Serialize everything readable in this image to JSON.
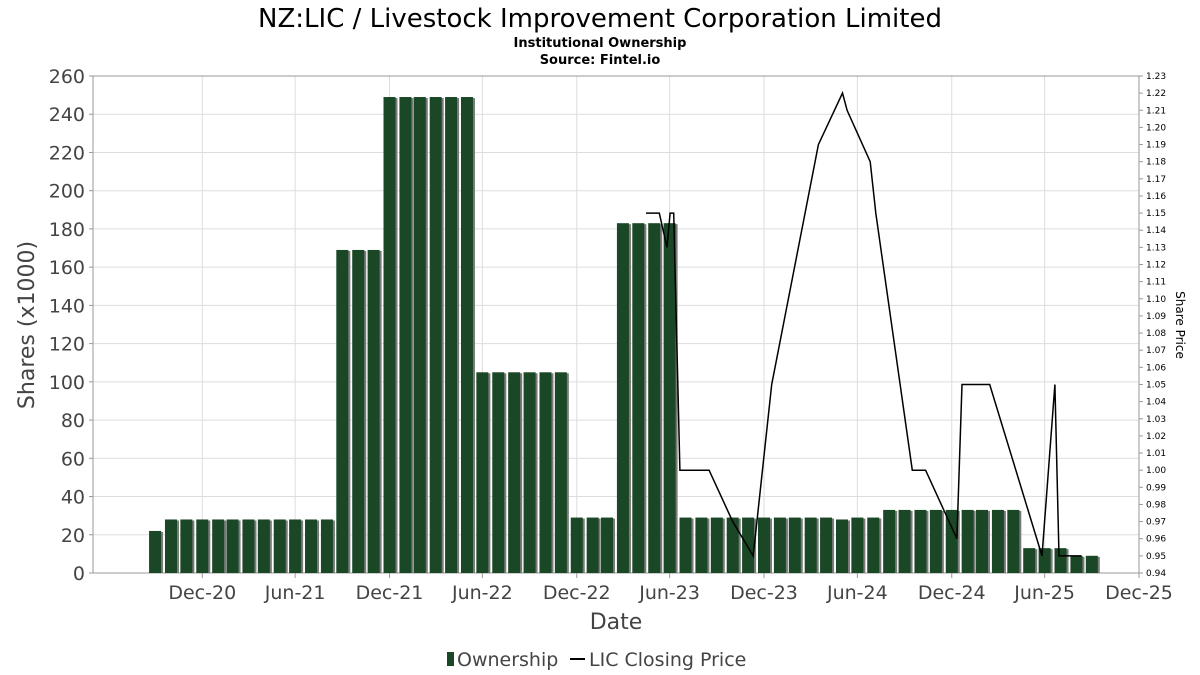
{
  "chart_data": {
    "type": "bar",
    "title": "NZ:LIC / Livestock Improvement Corporation Limited",
    "subtitle": "Institutional Ownership",
    "source": "Source: Fintel.io",
    "xlabel": "Date",
    "ylabel": "Shares (x1000)",
    "ylabel_right": "Share Price",
    "ylim": [
      0,
      260
    ],
    "ylim_right": [
      0.94,
      1.23
    ],
    "y_ticks": [
      0,
      20,
      40,
      60,
      80,
      100,
      120,
      140,
      160,
      180,
      200,
      220,
      240,
      260
    ],
    "y_right_ticks": [
      "0.94",
      "0.95",
      "0.96",
      "0.97",
      "0.98",
      "0.99",
      "1.00",
      "1.01",
      "1.02",
      "1.03",
      "1.04",
      "1.05",
      "1.06",
      "1.07",
      "1.08",
      "1.09",
      "1.10",
      "1.11",
      "1.12",
      "1.13",
      "1.14",
      "1.15",
      "1.16",
      "1.17",
      "1.18",
      "1.19",
      "1.20",
      "1.21",
      "1.22",
      "1.23"
    ],
    "x_ticks": [
      "Dec-20",
      "Jun-21",
      "Dec-21",
      "Jun-22",
      "Dec-22",
      "Jun-23",
      "Dec-23",
      "Jun-24",
      "Dec-24",
      "Jun-25",
      "Dec-25"
    ],
    "x_range": [
      "2020-06-01",
      "2025-12-31"
    ],
    "grid": true,
    "legend_position": "bottom",
    "colors": {
      "bar": "#1a4726",
      "bar_shadow": "#7a7a7a",
      "line": "#000000",
      "grid": "#dddddd"
    },
    "series": [
      {
        "name": "Ownership",
        "kind": "bar",
        "points": [
          {
            "x": "2020-09-30",
            "y": 22
          },
          {
            "x": "2020-10-31",
            "y": 28
          },
          {
            "x": "2020-11-30",
            "y": 28
          },
          {
            "x": "2020-12-31",
            "y": 28
          },
          {
            "x": "2021-01-31",
            "y": 28
          },
          {
            "x": "2021-02-28",
            "y": 28
          },
          {
            "x": "2021-03-31",
            "y": 28
          },
          {
            "x": "2021-04-30",
            "y": 28
          },
          {
            "x": "2021-05-31",
            "y": 28
          },
          {
            "x": "2021-06-30",
            "y": 28
          },
          {
            "x": "2021-07-31",
            "y": 28
          },
          {
            "x": "2021-08-31",
            "y": 28
          },
          {
            "x": "2021-09-30",
            "y": 169
          },
          {
            "x": "2021-10-31",
            "y": 169
          },
          {
            "x": "2021-11-30",
            "y": 169
          },
          {
            "x": "2021-12-31",
            "y": 249
          },
          {
            "x": "2022-01-31",
            "y": 249
          },
          {
            "x": "2022-02-28",
            "y": 249
          },
          {
            "x": "2022-03-31",
            "y": 249
          },
          {
            "x": "2022-04-30",
            "y": 249
          },
          {
            "x": "2022-05-31",
            "y": 249
          },
          {
            "x": "2022-06-30",
            "y": 105
          },
          {
            "x": "2022-07-31",
            "y": 105
          },
          {
            "x": "2022-08-31",
            "y": 105
          },
          {
            "x": "2022-09-30",
            "y": 105
          },
          {
            "x": "2022-10-31",
            "y": 105
          },
          {
            "x": "2022-11-30",
            "y": 105
          },
          {
            "x": "2022-12-31",
            "y": 29
          },
          {
            "x": "2023-01-31",
            "y": 29
          },
          {
            "x": "2023-02-28",
            "y": 29
          },
          {
            "x": "2023-03-31",
            "y": 183
          },
          {
            "x": "2023-04-30",
            "y": 183
          },
          {
            "x": "2023-05-31",
            "y": 183
          },
          {
            "x": "2023-06-30",
            "y": 183
          },
          {
            "x": "2023-07-31",
            "y": 29
          },
          {
            "x": "2023-08-31",
            "y": 29
          },
          {
            "x": "2023-09-30",
            "y": 29
          },
          {
            "x": "2023-10-31",
            "y": 29
          },
          {
            "x": "2023-11-30",
            "y": 29
          },
          {
            "x": "2023-12-31",
            "y": 29
          },
          {
            "x": "2024-01-31",
            "y": 29
          },
          {
            "x": "2024-02-29",
            "y": 29
          },
          {
            "x": "2024-03-31",
            "y": 29
          },
          {
            "x": "2024-04-30",
            "y": 29
          },
          {
            "x": "2024-05-31",
            "y": 28
          },
          {
            "x": "2024-06-30",
            "y": 29
          },
          {
            "x": "2024-07-31",
            "y": 29
          },
          {
            "x": "2024-08-31",
            "y": 33
          },
          {
            "x": "2024-09-30",
            "y": 33
          },
          {
            "x": "2024-10-31",
            "y": 33
          },
          {
            "x": "2024-11-30",
            "y": 33
          },
          {
            "x": "2024-12-31",
            "y": 33
          },
          {
            "x": "2025-01-31",
            "y": 33
          },
          {
            "x": "2025-02-28",
            "y": 33
          },
          {
            "x": "2025-03-31",
            "y": 33
          },
          {
            "x": "2025-04-30",
            "y": 33
          },
          {
            "x": "2025-05-31",
            "y": 13
          },
          {
            "x": "2025-06-30",
            "y": 13
          },
          {
            "x": "2025-07-31",
            "y": 13
          },
          {
            "x": "2025-08-31",
            "y": 9
          },
          {
            "x": "2025-09-30",
            "y": 9
          }
        ]
      },
      {
        "name": "LIC Closing Price",
        "kind": "line",
        "axis": "right",
        "points": [
          {
            "x": "2023-05-15",
            "y": 1.15
          },
          {
            "x": "2023-06-10",
            "y": 1.15
          },
          {
            "x": "2023-06-25",
            "y": 1.13
          },
          {
            "x": "2023-07-01",
            "y": 1.15
          },
          {
            "x": "2023-07-08",
            "y": 1.15
          },
          {
            "x": "2023-07-20",
            "y": 1.0
          },
          {
            "x": "2023-09-15",
            "y": 1.0
          },
          {
            "x": "2023-10-31",
            "y": 0.97
          },
          {
            "x": "2023-11-20",
            "y": 0.96
          },
          {
            "x": "2023-12-10",
            "y": 0.95
          },
          {
            "x": "2024-01-15",
            "y": 1.05
          },
          {
            "x": "2024-04-15",
            "y": 1.19
          },
          {
            "x": "2024-06-01",
            "y": 1.22
          },
          {
            "x": "2024-06-10",
            "y": 1.21
          },
          {
            "x": "2024-07-25",
            "y": 1.18
          },
          {
            "x": "2024-08-05",
            "y": 1.15
          },
          {
            "x": "2024-10-15",
            "y": 1.0
          },
          {
            "x": "2024-11-10",
            "y": 1.0
          },
          {
            "x": "2025-01-10",
            "y": 0.96
          },
          {
            "x": "2025-01-20",
            "y": 1.05
          },
          {
            "x": "2025-03-15",
            "y": 1.05
          },
          {
            "x": "2025-06-25",
            "y": 0.95
          },
          {
            "x": "2025-07-20",
            "y": 1.05
          },
          {
            "x": "2025-07-28",
            "y": 0.95
          },
          {
            "x": "2025-09-10",
            "y": 0.95
          }
        ]
      }
    ]
  }
}
